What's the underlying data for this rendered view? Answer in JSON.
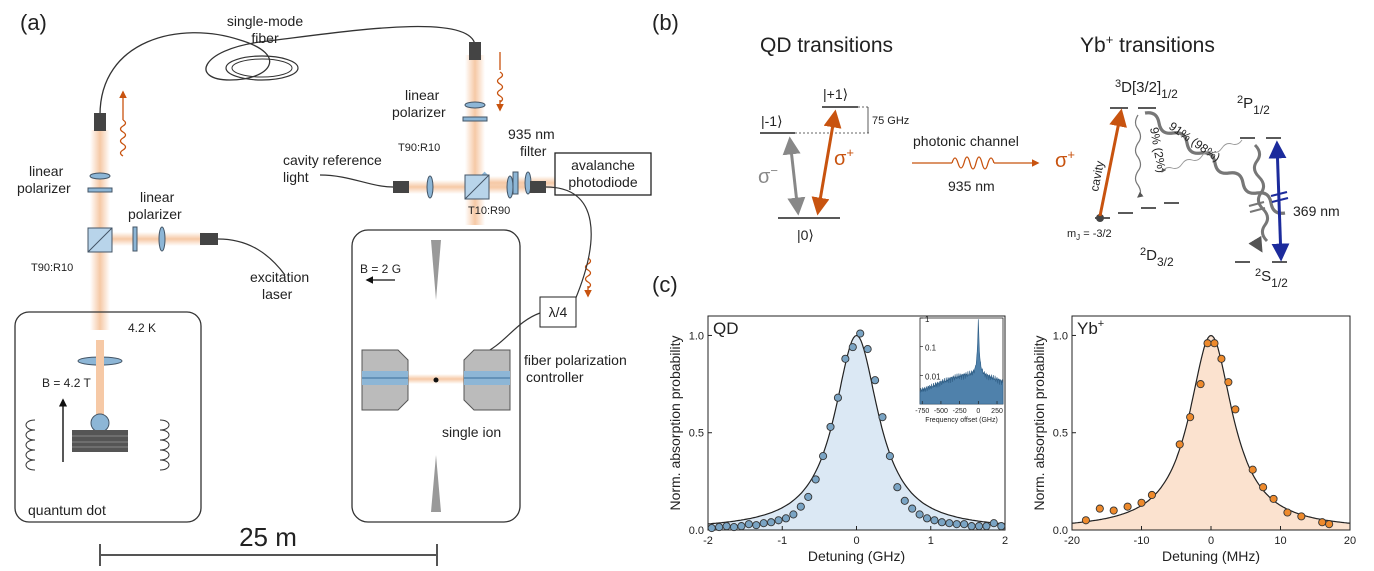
{
  "panels": {
    "a": "(a)",
    "b": "(b)",
    "c": "(c)"
  },
  "setup": {
    "fiber_top": [
      "single-mode",
      "fiber"
    ],
    "linear_polarizer_left": [
      "linear",
      "polarizer"
    ],
    "linear_polarizer_mid": [
      "linear",
      "polarizer"
    ],
    "linear_polarizer_right": [
      "linear",
      "polarizer"
    ],
    "bs_left": "T90:R10",
    "bs_right_top": "T90:R10",
    "bs_right": "T10:R90",
    "filter": [
      "935 nm",
      "filter"
    ],
    "apd": [
      "avalanche",
      "photodiode"
    ],
    "cavity_ref": [
      "cavity reference",
      "light"
    ],
    "excitation": [
      "excitation",
      "laser"
    ],
    "temp": "4.2 K",
    "b_dot": "B = 4.2 T",
    "quantum_dot": "quantum dot",
    "b_ion": "B = 2 G",
    "single_ion": "single ion",
    "waveplate": "λ/4",
    "fpc": [
      "fiber polarization",
      "controller"
    ],
    "scale": "25 m"
  },
  "levels": {
    "qd_title": "QD transitions",
    "yb_title_main": "Yb",
    "yb_title_sup": "+",
    "yb_title_rest": " transitions",
    "minus1": "|-1⟩",
    "plus1": "|+1⟩",
    "zero": "|0⟩",
    "split": "75 GHz",
    "sigma_minus": "σ",
    "sigma_minus_sup": "−",
    "sigma_plus": "σ",
    "sigma_plus_sup": "+",
    "channel": "photonic channel",
    "wavelength": "935 nm",
    "d32_upper": "3D[3/2]",
    "d32_upper_pre": "3",
    "d32_upper_main": "D[3/2]",
    "d32_upper_sub": "1/2",
    "p12_pre": "2",
    "p12_main": "P",
    "p12_sub": "1/2",
    "d32_pre": "2",
    "d32_main": "D",
    "d32_sub": "3/2",
    "s12_pre": "2",
    "s12_main": "S",
    "s12_sub": "1/2",
    "cavity": "cavity",
    "branch_91": "91% (98%)",
    "branch_9": "9% (2%)",
    "mj": "m",
    "mj_sub": "J",
    "mj_val": " = -3/2",
    "uv": "369 nm"
  },
  "colors": {
    "orange": "#c8530f",
    "blue": "#1c2b9c",
    "qd_fill": "#dbe8f4",
    "qd_point": "#7aa4c4",
    "yb_fill": "#fbe2cf",
    "yb_point": "#ee8a2c",
    "beam": "#f6c9a6"
  },
  "chart_data": [
    {
      "type": "scatter",
      "title": "",
      "label": "QD",
      "xlabel": "Detuning (GHz)",
      "ylabel": "Norm. absorption probability",
      "xlim": [
        -2,
        2
      ],
      "ylim": [
        0,
        1.1
      ],
      "xticks": [
        -2,
        -1,
        0,
        1,
        2
      ],
      "yticks": [
        0.0,
        0.5,
        1.0
      ],
      "points": [
        [
          -1.95,
          0.01
        ],
        [
          -1.85,
          0.015
        ],
        [
          -1.75,
          0.02
        ],
        [
          -1.65,
          0.015
        ],
        [
          -1.55,
          0.02
        ],
        [
          -1.45,
          0.03
        ],
        [
          -1.35,
          0.025
        ],
        [
          -1.25,
          0.035
        ],
        [
          -1.15,
          0.04
        ],
        [
          -1.05,
          0.05
        ],
        [
          -0.95,
          0.06
        ],
        [
          -0.85,
          0.08
        ],
        [
          -0.75,
          0.12
        ],
        [
          -0.65,
          0.17
        ],
        [
          -0.55,
          0.26
        ],
        [
          -0.45,
          0.38
        ],
        [
          -0.35,
          0.53
        ],
        [
          -0.25,
          0.68
        ],
        [
          -0.15,
          0.88
        ],
        [
          -0.05,
          0.94
        ],
        [
          0.05,
          1.01
        ],
        [
          0.15,
          0.93
        ],
        [
          0.25,
          0.77
        ],
        [
          0.35,
          0.58
        ],
        [
          0.45,
          0.38
        ],
        [
          0.55,
          0.22
        ],
        [
          0.65,
          0.15
        ],
        [
          0.75,
          0.11
        ],
        [
          0.85,
          0.08
        ],
        [
          0.95,
          0.06
        ],
        [
          1.05,
          0.05
        ],
        [
          1.15,
          0.04
        ],
        [
          1.25,
          0.035
        ],
        [
          1.35,
          0.03
        ],
        [
          1.45,
          0.03
        ],
        [
          1.55,
          0.02
        ],
        [
          1.65,
          0.02
        ],
        [
          1.75,
          0.02
        ],
        [
          1.85,
          0.035
        ],
        [
          1.95,
          0.02
        ]
      ],
      "fit": {
        "center": 0,
        "fwhm": 0.72,
        "amplitude": 1.0
      },
      "inset": {
        "xlabel": "Frequency offset (GHz)",
        "xticks": [
          -750,
          -500,
          -250,
          0,
          250
        ],
        "ytick_labels": [
          "1",
          "0.1",
          "0.01"
        ],
        "yscale": "log"
      }
    },
    {
      "type": "scatter",
      "title": "",
      "label": "Yb+",
      "label_main": "Yb",
      "label_sup": "+",
      "xlabel": "Detuning (MHz)",
      "ylabel": "Norm. absorption probability",
      "xlim": [
        -20,
        20
      ],
      "ylim": [
        0,
        1.1
      ],
      "xticks": [
        -20,
        -10,
        0,
        10,
        20
      ],
      "yticks": [
        0.0,
        0.5,
        1.0
      ],
      "points": [
        [
          -18,
          0.05
        ],
        [
          -16,
          0.11
        ],
        [
          -14,
          0.1
        ],
        [
          -12,
          0.12
        ],
        [
          -10,
          0.14
        ],
        [
          -8.5,
          0.18
        ],
        [
          -4.5,
          0.44
        ],
        [
          -3,
          0.58
        ],
        [
          -1.5,
          0.75
        ],
        [
          -0.5,
          0.96
        ],
        [
          0.5,
          0.96
        ],
        [
          1.5,
          0.88
        ],
        [
          2.5,
          0.76
        ],
        [
          3.5,
          0.62
        ],
        [
          6,
          0.31
        ],
        [
          7.5,
          0.22
        ],
        [
          9,
          0.16
        ],
        [
          11,
          0.09
        ],
        [
          13,
          0.07
        ],
        [
          16,
          0.04
        ],
        [
          17,
          0.03
        ]
      ],
      "fit": {
        "center": 0,
        "fwhm": 7.6,
        "amplitude": 1.0
      }
    }
  ]
}
